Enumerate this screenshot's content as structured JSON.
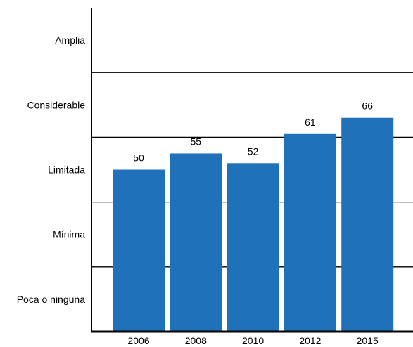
{
  "chart_data": {
    "type": "bar",
    "categories": [
      "2006",
      "2008",
      "2010",
      "2012",
      "2015"
    ],
    "values": [
      50,
      55,
      52,
      61,
      66
    ],
    "data_labels": [
      "50",
      "55",
      "52",
      "61",
      "66"
    ],
    "ylim": [
      0,
      100
    ],
    "y_bands": [
      "Poca o ninguna",
      "Mínima",
      "Limitada",
      "Considerable",
      "Amplia"
    ],
    "bar_color": "#1f72b9",
    "grid": true
  }
}
